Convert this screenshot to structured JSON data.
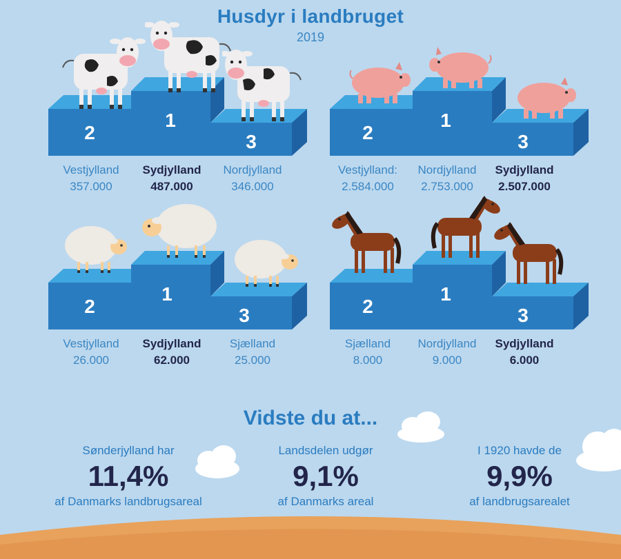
{
  "header": {
    "title": "Husdyr i landbruget",
    "year": "2019"
  },
  "panels": [
    {
      "animal": "cow",
      "labels": [
        {
          "rank": "2",
          "region": "Vestjylland",
          "value": "357.000",
          "winner": false
        },
        {
          "rank": "1",
          "region": "Sydjylland",
          "value": "487.000",
          "winner": true
        },
        {
          "rank": "3",
          "region": "Nordjylland",
          "value": "346.000",
          "winner": false
        }
      ]
    },
    {
      "animal": "pig",
      "labels": [
        {
          "rank": "2",
          "region": "Vestjylland:",
          "value": "2.584.000",
          "winner": false
        },
        {
          "rank": "1",
          "region": "Nordjylland",
          "value": "2.753.000",
          "winner": false
        },
        {
          "rank": "3",
          "region": "Sydjylland",
          "value": "2.507.000",
          "winner": true
        }
      ]
    },
    {
      "animal": "sheep",
      "labels": [
        {
          "rank": "2",
          "region": "Vestjylland",
          "value": "26.000",
          "winner": false
        },
        {
          "rank": "1",
          "region": "Sydjylland",
          "value": "62.000",
          "winner": true
        },
        {
          "rank": "3",
          "region": "Sjælland",
          "value": "25.000",
          "winner": false
        }
      ]
    },
    {
      "animal": "horse",
      "labels": [
        {
          "rank": "2",
          "region": "Sjælland",
          "value": "8.000",
          "winner": false
        },
        {
          "rank": "1",
          "region": "Nordjylland",
          "value": "9.000",
          "winner": false
        },
        {
          "rank": "3",
          "region": "Sydjylland",
          "value": "6.000",
          "winner": true
        }
      ]
    }
  ],
  "facts": {
    "heading": "Vidste du at...",
    "items": [
      {
        "pre": "Sønderjylland har",
        "big": "11,4%",
        "post": "af Danmarks landbrugsareal"
      },
      {
        "pre": "Landsdelen udgør",
        "big": "9,1%",
        "post": "af Danmarks areal"
      },
      {
        "pre": "I 1920 havde de",
        "big": "9,9%",
        "post": "af landbrugsarealet"
      }
    ]
  },
  "colors": {
    "background": "#bcd8ee",
    "podium_front": "#2a7cc0",
    "podium_top": "#3fa6e0",
    "podium_side": "#1e62a3",
    "field": "#e8a25c"
  }
}
